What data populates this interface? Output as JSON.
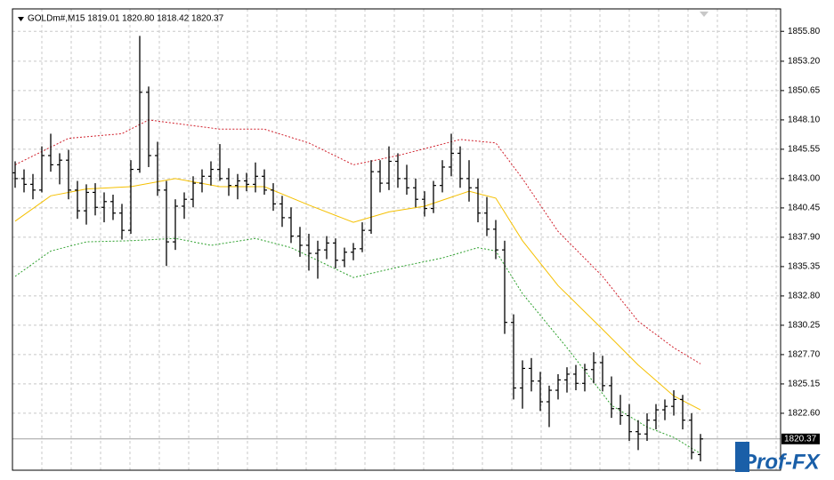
{
  "chart_data": {
    "type": "ohlc",
    "title": "GOLDm#,M15  1819.01 1820.80 1818.42 1820.37",
    "xlim": [
      -0.3,
      86
    ],
    "ylim": [
      1817.65,
      1857.75
    ],
    "yticks": [
      {
        "value": 1822.6,
        "label": "1822.60"
      },
      1825.15,
      {
        "value": 1827.7,
        "label": "1827.70"
      },
      1830.25,
      {
        "value": 1832.8,
        "label": "1832.80"
      },
      1835.35,
      {
        "value": 1837.9,
        "label": "1837.90"
      },
      1840.45,
      {
        "value": 1843,
        "label": "1843.00"
      },
      1845.55,
      {
        "value": 1848.1,
        "label": "1848.10"
      },
      1850.65,
      {
        "value": 1853.2,
        "label": "1853.20"
      },
      {
        "value": 1855.8,
        "label": "1855.80"
      }
    ],
    "grid": true,
    "bar_color": "#000000",
    "ohlc": {
      "open": [
        1843.5,
        1843.0,
        1842.5,
        1842.0,
        1845.0,
        1844.2,
        1844.6,
        1842.0,
        1840.2,
        1841.8,
        1840.5,
        1841.0,
        1840.0,
        1838.5,
        1843.8,
        1850.5,
        1845.0,
        1842.0,
        1837.5,
        1840.6,
        1841.2,
        1842.6,
        1843.2,
        1843.8,
        1843.0,
        1842.4,
        1842.8,
        1842.5,
        1843.2,
        1842.0,
        1840.8,
        1839.6,
        1838.0,
        1837.2,
        1836.5,
        1836.8,
        1837.4,
        1835.9,
        1836.6,
        1836.9,
        1838.5,
        1843.6,
        1842.6,
        1844.5,
        1843.0,
        1842.2,
        1841.2,
        1840.4,
        1842.4,
        1844.0,
        1845.2,
        1843.0,
        1842.2,
        1840.0,
        1838.6,
        1836.8,
        1830.5,
        1824.8,
        1826.5,
        1825.4,
        1823.6,
        1824.6,
        1825.5,
        1826.0,
        1825.2,
        1826.4,
        1827.0,
        1825.0,
        1823.0,
        1822.4,
        1821.0,
        1820.8,
        1822.0,
        1822.9,
        1823.2,
        1823.8,
        1822.0,
        1819.01
      ],
      "high": [
        1844.5,
        1843.8,
        1843.4,
        1845.8,
        1846.9,
        1845.2,
        1845.5,
        1842.8,
        1842.5,
        1842.6,
        1841.8,
        1841.6,
        1840.8,
        1844.6,
        1855.4,
        1851.0,
        1846.2,
        1842.8,
        1841.2,
        1841.8,
        1843.2,
        1843.8,
        1844.5,
        1846.0,
        1843.9,
        1843.4,
        1843.5,
        1844.4,
        1843.8,
        1842.6,
        1841.5,
        1840.5,
        1838.8,
        1838.2,
        1837.6,
        1838.0,
        1837.8,
        1837.0,
        1837.4,
        1839.2,
        1844.6,
        1844.6,
        1845.8,
        1845.2,
        1844.2,
        1843.0,
        1841.9,
        1842.8,
        1844.6,
        1846.9,
        1845.8,
        1844.6,
        1843.0,
        1841.4,
        1839.4,
        1837.6,
        1831.2,
        1827.2,
        1827.4,
        1826.2,
        1825.0,
        1826.0,
        1826.6,
        1826.8,
        1826.9,
        1827.9,
        1827.6,
        1825.8,
        1824.2,
        1823.4,
        1822.0,
        1822.6,
        1823.4,
        1823.8,
        1824.6,
        1824.2,
        1822.6,
        1820.8
      ],
      "low": [
        1842.2,
        1841.8,
        1841.2,
        1841.8,
        1843.6,
        1842.5,
        1841.2,
        1839.5,
        1839.0,
        1839.8,
        1839.2,
        1839.4,
        1837.7,
        1838.2,
        1843.5,
        1844.0,
        1841.5,
        1835.4,
        1836.8,
        1839.5,
        1840.5,
        1841.8,
        1842.4,
        1842.8,
        1841.5,
        1841.2,
        1841.9,
        1841.8,
        1841.6,
        1840.2,
        1838.8,
        1837.4,
        1836.2,
        1835.0,
        1834.3,
        1836.0,
        1835.2,
        1835.3,
        1835.9,
        1836.6,
        1838.2,
        1841.8,
        1842.0,
        1842.2,
        1841.6,
        1840.5,
        1839.7,
        1840.0,
        1841.8,
        1843.2,
        1842.2,
        1841.0,
        1839.2,
        1838.0,
        1836.0,
        1829.5,
        1823.8,
        1823.0,
        1824.5,
        1822.8,
        1821.4,
        1823.8,
        1824.4,
        1824.6,
        1824.5,
        1825.2,
        1824.5,
        1822.2,
        1821.6,
        1820.2,
        1819.4,
        1820.2,
        1821.2,
        1822.0,
        1822.4,
        1821.2,
        1818.6,
        1818.42
      ],
      "close": [
        1843.0,
        1842.5,
        1842.0,
        1845.0,
        1844.2,
        1844.6,
        1842.0,
        1840.2,
        1841.8,
        1840.5,
        1841.0,
        1840.0,
        1838.5,
        1843.8,
        1850.5,
        1845.0,
        1842.0,
        1837.5,
        1840.6,
        1841.2,
        1842.6,
        1843.2,
        1843.8,
        1843.0,
        1842.4,
        1842.8,
        1842.5,
        1843.2,
        1842.0,
        1840.8,
        1839.6,
        1838.0,
        1837.2,
        1836.5,
        1836.8,
        1837.4,
        1835.9,
        1836.6,
        1836.9,
        1838.5,
        1843.6,
        1842.6,
        1844.5,
        1843.0,
        1842.2,
        1841.2,
        1840.4,
        1842.4,
        1844.0,
        1845.2,
        1843.0,
        1842.2,
        1840.0,
        1838.6,
        1836.8,
        1830.5,
        1824.8,
        1826.5,
        1825.4,
        1823.6,
        1824.6,
        1825.5,
        1826.0,
        1825.2,
        1826.4,
        1827.0,
        1825.0,
        1823.0,
        1822.4,
        1821.0,
        1820.8,
        1822.0,
        1822.9,
        1823.2,
        1823.8,
        1822.0,
        1819.2,
        1820.37
      ]
    },
    "bands": [
      {
        "color": "#d0202c",
        "dashed": true,
        "x": [
          0,
          6,
          12,
          15,
          23,
          28,
          33,
          38,
          43,
          48,
          50,
          54,
          57,
          61,
          66,
          70,
          74,
          77
        ],
        "values": [
          1844.2,
          1846.5,
          1846.9,
          1848.1,
          1847.3,
          1847.3,
          1846.1,
          1844.2,
          1845.0,
          1846.0,
          1846.4,
          1846.1,
          1843.0,
          1838.4,
          1834.5,
          1830.6,
          1828.3,
          1826.9
        ]
      },
      {
        "color": "#f5c000",
        "dashed": false,
        "x": [
          0,
          4,
          8,
          13,
          18,
          23,
          28,
          33,
          38,
          42,
          46,
          51,
          54,
          57,
          61,
          66,
          70,
          74,
          77
        ],
        "values": [
          1839.3,
          1841.5,
          1842.1,
          1842.3,
          1843.0,
          1842.3,
          1842.3,
          1840.7,
          1839.2,
          1840.1,
          1840.6,
          1841.9,
          1841.3,
          1837.6,
          1833.7,
          1829.9,
          1826.8,
          1824.1,
          1822.9
        ]
      },
      {
        "color": "#2ca02c",
        "dashed": true,
        "x": [
          0,
          4,
          8,
          13,
          18,
          22,
          27,
          31,
          38,
          43,
          48,
          52,
          54,
          57,
          62,
          67,
          71,
          74,
          77
        ],
        "values": [
          1834.5,
          1836.7,
          1837.5,
          1837.6,
          1837.8,
          1837.2,
          1837.8,
          1837.0,
          1834.4,
          1835.3,
          1836.1,
          1837.0,
          1836.7,
          1833.0,
          1828.3,
          1823.3,
          1821.4,
          1820.5,
          1819.1
        ]
      }
    ],
    "last_price": 1820.37,
    "logo": "Prof-FX"
  }
}
